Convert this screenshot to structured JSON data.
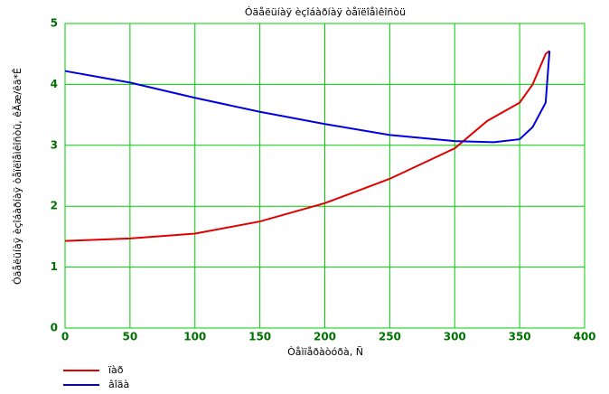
{
  "chart_data": {
    "type": "line",
    "title": "Óäåëüíàÿ èçîáàðíàÿ òåïëîåìêîñòü",
    "x_label": "Òåìïåðàòóðà, Ñ",
    "y_label": "Óäåëüíàÿ èçîáàðíàÿ òåïëîåìêîñòü, êÄæ/êã*Ê",
    "xlim": [
      0,
      400
    ],
    "xticks": [
      0,
      50,
      100,
      150,
      200,
      250,
      300,
      350,
      400
    ],
    "ylim": [
      0,
      5
    ],
    "yticks": [
      0,
      1,
      2,
      3,
      4,
      5
    ],
    "grid": true,
    "grid_color": "#00cc00",
    "tick_color": "#007000",
    "series": [
      {
        "name": "ïàð",
        "color": "#e00000",
        "x": [
          0,
          50,
          100,
          150,
          200,
          250,
          300,
          325,
          350,
          360,
          370,
          373
        ],
        "values": [
          1.43,
          1.47,
          1.55,
          1.75,
          2.05,
          2.45,
          2.95,
          3.4,
          3.7,
          4.0,
          4.5,
          4.55
        ]
      },
      {
        "name": "âîäà",
        "color": "#0000e0",
        "x": [
          0,
          50,
          100,
          150,
          200,
          250,
          300,
          330,
          350,
          360,
          370,
          373
        ],
        "values": [
          4.22,
          4.03,
          3.78,
          3.55,
          3.35,
          3.17,
          3.07,
          3.05,
          3.1,
          3.3,
          3.7,
          4.55
        ]
      }
    ]
  }
}
